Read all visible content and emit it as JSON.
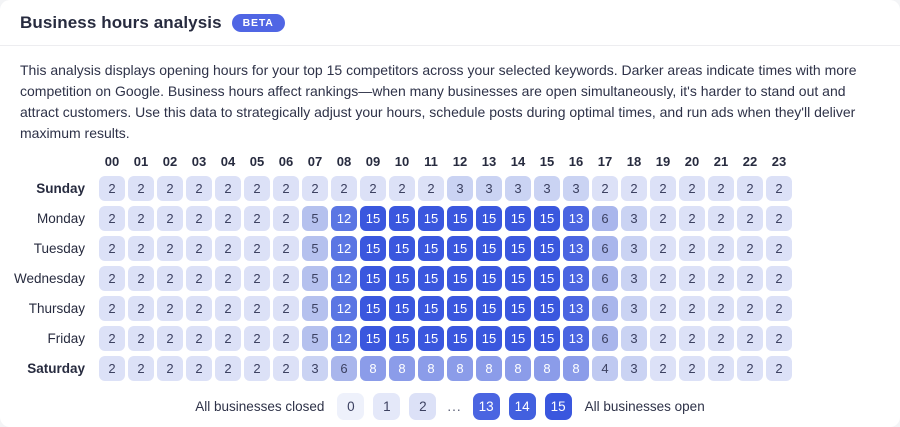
{
  "header": {
    "title": "Business hours analysis",
    "badge": "BETA",
    "badge_color": "#5066e4"
  },
  "description": "This analysis displays opening hours for your top 15 competitors across your selected keywords. Darker areas indicate times with more competition on Google. Business hours affect rankings—when many businesses are open simultaneously, it's harder to stand out and attract customers. Use this data to strategically adjust your hours, schedule posts during optimal times, and run ads when they'll deliver maximum results.",
  "chart_data": {
    "type": "heatmap",
    "title": "Business hours analysis",
    "x_labels": [
      "00",
      "01",
      "02",
      "03",
      "04",
      "05",
      "06",
      "07",
      "08",
      "09",
      "10",
      "11",
      "12",
      "13",
      "14",
      "15",
      "16",
      "17",
      "18",
      "19",
      "20",
      "21",
      "22",
      "23"
    ],
    "y_labels": [
      "Sunday",
      "Monday",
      "Tuesday",
      "Wednesday",
      "Thursday",
      "Friday",
      "Saturday"
    ],
    "bold_y_labels": [
      "Sunday",
      "Saturday"
    ],
    "value_range": [
      0,
      15
    ],
    "series": [
      {
        "name": "Sunday",
        "values": [
          2,
          2,
          2,
          2,
          2,
          2,
          2,
          2,
          2,
          2,
          2,
          2,
          3,
          3,
          3,
          3,
          3,
          2,
          2,
          2,
          2,
          2,
          2,
          2
        ]
      },
      {
        "name": "Monday",
        "values": [
          2,
          2,
          2,
          2,
          2,
          2,
          2,
          5,
          12,
          15,
          15,
          15,
          15,
          15,
          15,
          15,
          13,
          6,
          3,
          2,
          2,
          2,
          2,
          2
        ]
      },
      {
        "name": "Tuesday",
        "values": [
          2,
          2,
          2,
          2,
          2,
          2,
          2,
          5,
          12,
          15,
          15,
          15,
          15,
          15,
          15,
          15,
          13,
          6,
          3,
          2,
          2,
          2,
          2,
          2
        ]
      },
      {
        "name": "Wednesday",
        "values": [
          2,
          2,
          2,
          2,
          2,
          2,
          2,
          5,
          12,
          15,
          15,
          15,
          15,
          15,
          15,
          15,
          13,
          6,
          3,
          2,
          2,
          2,
          2,
          2
        ]
      },
      {
        "name": "Thursday",
        "values": [
          2,
          2,
          2,
          2,
          2,
          2,
          2,
          5,
          12,
          15,
          15,
          15,
          15,
          15,
          15,
          15,
          13,
          6,
          3,
          2,
          2,
          2,
          2,
          2
        ]
      },
      {
        "name": "Friday",
        "values": [
          2,
          2,
          2,
          2,
          2,
          2,
          2,
          5,
          12,
          15,
          15,
          15,
          15,
          15,
          15,
          15,
          13,
          6,
          3,
          2,
          2,
          2,
          2,
          2
        ]
      },
      {
        "name": "Saturday",
        "values": [
          2,
          2,
          2,
          2,
          2,
          2,
          2,
          3,
          6,
          8,
          8,
          8,
          8,
          8,
          8,
          8,
          8,
          4,
          3,
          2,
          2,
          2,
          2,
          2
        ]
      }
    ],
    "colors": {
      "0": "#eef1fb",
      "1": "#e4e8f9",
      "2": "#dce1f7",
      "3": "#cad3f3",
      "4": "#bfc9f1",
      "5": "#b5c1ee",
      "6": "#a9b6ec",
      "8": "#8b9ce9",
      "12": "#5b76e3",
      "13": "#4b65e1",
      "14": "#4260df",
      "15": "#3a57de"
    },
    "dark_text_color": "#3c4161",
    "light_text_color": "#ffffff",
    "white_text_min": 8
  },
  "legend": {
    "left_label": "All businesses closed",
    "right_label": "All businesses open",
    "low_values": [
      0,
      1,
      2
    ],
    "ellipsis": "...",
    "high_values": [
      13,
      14,
      15
    ]
  }
}
